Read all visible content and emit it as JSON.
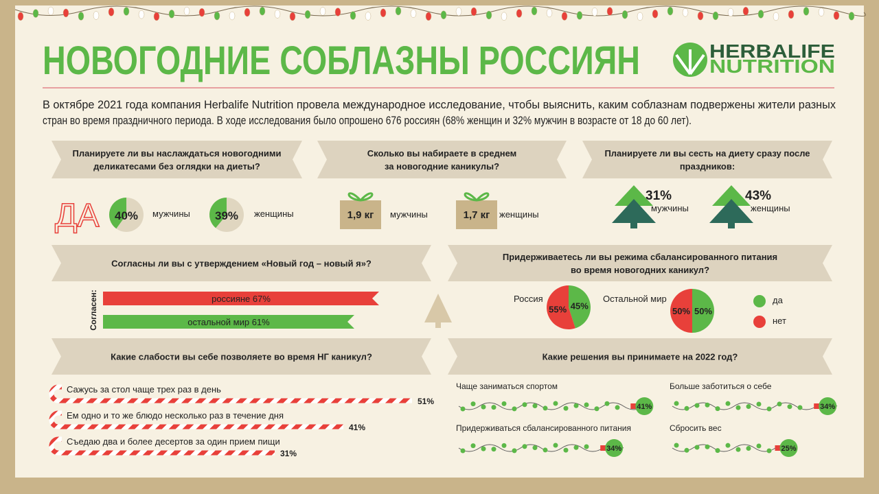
{
  "header": {
    "title": "НОВОГОДНИЕ СОБЛАЗНЫ РОССИЯН",
    "logo": [
      "HERBALIFE",
      "NUTRITION"
    ],
    "intro": [
      "В октябре 2021 года компания Herbalife Nutrition провела международное исследование, чтобы выяснить, каким соблазнам подвержены жители разных",
      "стран во время праздничного периода. В ходе исследования было опрошено 676 россиян (68% женщин и 32% мужчин в возрасте от 18 до 60 лет)."
    ]
  },
  "panels": {
    "indulge": {
      "question": [
        "Планируете ли вы наслаждаться новогодними",
        "деликатесами без оглядки на диеты?"
      ],
      "answer": "ДА",
      "pies": [
        {
          "value": 40,
          "label": "40%",
          "group": "мужчины"
        },
        {
          "value": 39,
          "label": "39%",
          "group": "женщины"
        }
      ]
    },
    "weight": {
      "question": [
        "Сколько вы набираете в среднем",
        "за новогодние каникулы?"
      ],
      "items": [
        {
          "amount": "1,9 кг",
          "group": "мужчины"
        },
        {
          "amount": "1,7 кг",
          "group": "женщины"
        }
      ]
    },
    "diet": {
      "question": [
        "Планируете ли вы сесть на диету сразу после",
        "праздников:"
      ],
      "items": [
        {
          "share": "31%",
          "group": "мужчины"
        },
        {
          "share": "43%",
          "group": "женщины"
        }
      ]
    },
    "new_me": {
      "question": [
        "Согласны ли вы с утверждением «Новый год – новый я»?"
      ],
      "axis_label": "Согласен:",
      "bars": [
        {
          "value": 67,
          "label": "россияне 67%",
          "color": "#e8403a"
        },
        {
          "value": 61,
          "label": "остальной мир 61%",
          "color": "#5cb848"
        }
      ]
    },
    "balanced": {
      "question": [
        "Придерживаетесь ли вы режима сбалансированного питания",
        "во время новогодних каникул?"
      ],
      "pies": [
        {
          "name": "Россия",
          "yes": {
            "value": 45,
            "label": "45%"
          },
          "no": {
            "value": 55,
            "label": "55%"
          }
        },
        {
          "name": "Остальной мир",
          "yes": {
            "value": 50,
            "label": "50%"
          },
          "no": {
            "value": 50,
            "label": "50%"
          }
        }
      ],
      "legend": {
        "yes": {
          "label": "да",
          "color": "#5cb848"
        },
        "no": {
          "label": "нет",
          "color": "#e8403a"
        }
      }
    },
    "weaknesses": {
      "question": [
        "Какие слабости вы себе позволяете во время НГ каникул?"
      ],
      "items": [
        {
          "text": "Сажусь за стол чаще трех раз в день",
          "value": 51,
          "label": "51%"
        },
        {
          "text": "Ем одно и то же блюдо несколько раз в течение дня",
          "value": 41,
          "label": "41%"
        },
        {
          "text": "Съедаю два и более десертов за один прием пищи",
          "value": 31,
          "label": "31%"
        }
      ]
    },
    "resolutions": {
      "question": [
        "Какие решения вы принимаете на 2022 год?"
      ],
      "items": [
        {
          "text": "Чаще заниматься спортом",
          "value": 41,
          "label": "41%"
        },
        {
          "text": "Больше заботиться о себе",
          "value": 34,
          "label": "34%"
        },
        {
          "text": "Придерживаться сбалансированного питания",
          "value": 34,
          "label": "34%"
        },
        {
          "text": "Сбросить вес",
          "value": 25,
          "label": "25%"
        }
      ]
    }
  }
}
